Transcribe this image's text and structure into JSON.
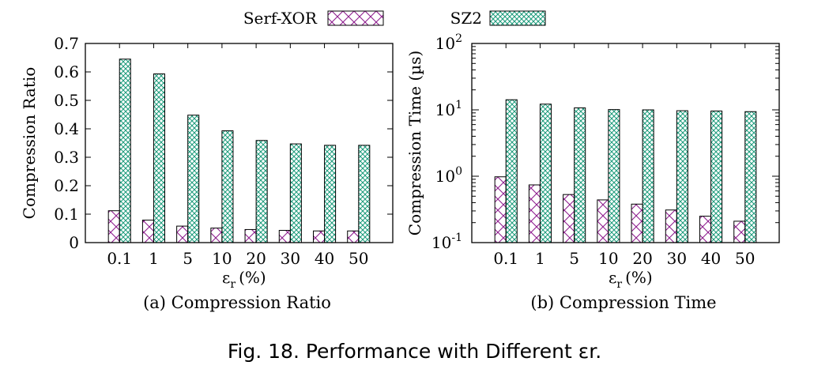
{
  "legend": {
    "placement": "top-center",
    "entries": [
      {
        "label": "Serf-XOR",
        "color": "#8e1e8e",
        "pattern": "cross-hatch"
      },
      {
        "label": "SZ2",
        "color": "#1a9a7a",
        "pattern": "dense-cross-hatch"
      }
    ]
  },
  "figure_caption": "Fig. 18. Performance with Different εr.",
  "chart_data": [
    {
      "type": "bar",
      "panel_caption": "(a) Compression Ratio",
      "xlabel": "εr (%)",
      "ylabel": "Compression Ratio",
      "categories": [
        "0.1",
        "1",
        "5",
        "10",
        "20",
        "30",
        "40",
        "50"
      ],
      "series": [
        {
          "name": "Serf-XOR",
          "values": [
            0.112,
            0.079,
            0.058,
            0.051,
            0.046,
            0.043,
            0.041,
            0.041
          ]
        },
        {
          "name": "SZ2",
          "values": [
            0.645,
            0.593,
            0.448,
            0.393,
            0.359,
            0.347,
            0.342,
            0.342
          ]
        }
      ],
      "ylim": [
        0,
        0.7
      ],
      "yticks": [
        "0",
        "0.1",
        "0.2",
        "0.3",
        "0.4",
        "0.5",
        "0.6",
        "0.7"
      ],
      "yscale": "linear",
      "grid": false
    },
    {
      "type": "bar",
      "panel_caption": "(b) Compression Time",
      "xlabel": "εr (%)",
      "ylabel": "Compression Time (µs)",
      "categories": [
        "0.1",
        "1",
        "5",
        "10",
        "20",
        "30",
        "40",
        "50"
      ],
      "series": [
        {
          "name": "Serf-XOR",
          "values": [
            0.98,
            0.74,
            0.53,
            0.44,
            0.38,
            0.31,
            0.25,
            0.21
          ]
        },
        {
          "name": "SZ2",
          "values": [
            14.2,
            12.2,
            10.7,
            10.1,
            10.0,
            9.7,
            9.6,
            9.4
          ]
        }
      ],
      "ylim": [
        0.1,
        100
      ],
      "yticks": [
        {
          "base": "10",
          "exp": "-1"
        },
        {
          "base": "10",
          "exp": "0"
        },
        {
          "base": "10",
          "exp": "1"
        },
        {
          "base": "10",
          "exp": "2"
        }
      ],
      "yscale": "log",
      "grid": false
    }
  ]
}
